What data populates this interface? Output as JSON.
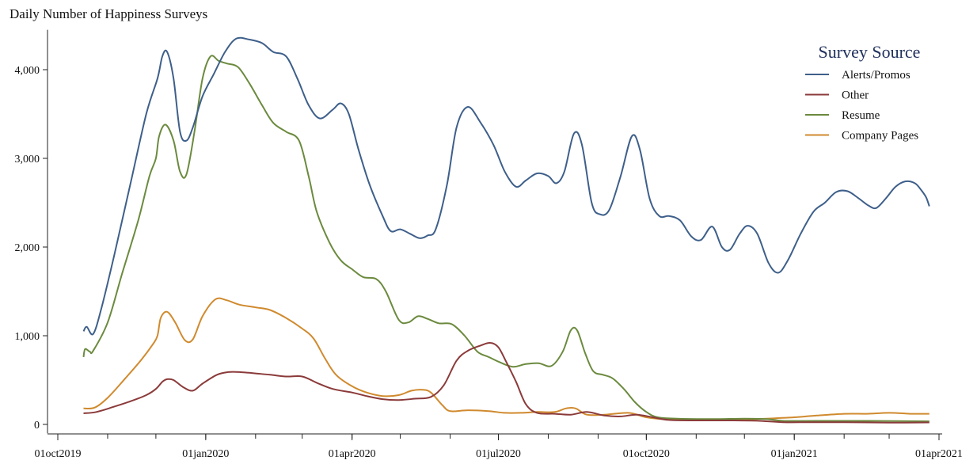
{
  "chart_data": {
    "type": "line",
    "title": "Daily Number of Happiness Surveys",
    "xlabel": "",
    "ylabel": "",
    "x_ticks": [
      "01oct2019",
      "01jan2020",
      "01apr2020",
      "01jul2020",
      "01oct2020",
      "01jan2021",
      "01apr2021"
    ],
    "x_range": [
      "2019-10-01",
      "2021-04-01"
    ],
    "y_ticks": [
      0,
      1000,
      2000,
      3000,
      4000
    ],
    "y_tick_labels": [
      "0",
      "1,000",
      "2,000",
      "3,000",
      "4,000"
    ],
    "ylim": [
      -100,
      4450
    ],
    "grid": false,
    "legend": {
      "title": "Survey Source",
      "position": "top-right"
    },
    "series": [
      {
        "name": "Alerts/Promos",
        "color": "#3e5f8a",
        "points": [
          [
            "2019-10-17",
            1050
          ],
          [
            "2019-10-19",
            1100
          ],
          [
            "2019-10-23",
            1020
          ],
          [
            "2019-10-28",
            1300
          ],
          [
            "2019-11-05",
            1900
          ],
          [
            "2019-11-15",
            2700
          ],
          [
            "2019-11-25",
            3500
          ],
          [
            "2019-12-02",
            3900
          ],
          [
            "2019-12-05",
            4150
          ],
          [
            "2019-12-08",
            4200
          ],
          [
            "2019-12-12",
            3900
          ],
          [
            "2019-12-16",
            3300
          ],
          [
            "2019-12-20",
            3200
          ],
          [
            "2019-12-24",
            3350
          ],
          [
            "2019-12-30",
            3700
          ],
          [
            "2020-01-06",
            3950
          ],
          [
            "2020-01-13",
            4200
          ],
          [
            "2020-01-20",
            4350
          ],
          [
            "2020-01-28",
            4340
          ],
          [
            "2020-02-05",
            4300
          ],
          [
            "2020-02-12",
            4200
          ],
          [
            "2020-02-20",
            4150
          ],
          [
            "2020-02-27",
            3900
          ],
          [
            "2020-03-05",
            3600
          ],
          [
            "2020-03-12",
            3450
          ],
          [
            "2020-03-20",
            3550
          ],
          [
            "2020-03-25",
            3620
          ],
          [
            "2020-03-30",
            3500
          ],
          [
            "2020-04-05",
            3100
          ],
          [
            "2020-04-12",
            2700
          ],
          [
            "2020-04-20",
            2350
          ],
          [
            "2020-04-25",
            2180
          ],
          [
            "2020-05-01",
            2200
          ],
          [
            "2020-05-07",
            2150
          ],
          [
            "2020-05-13",
            2100
          ],
          [
            "2020-05-18",
            2130
          ],
          [
            "2020-05-23",
            2200
          ],
          [
            "2020-05-30",
            2700
          ],
          [
            "2020-06-05",
            3350
          ],
          [
            "2020-06-12",
            3580
          ],
          [
            "2020-06-20",
            3400
          ],
          [
            "2020-06-28",
            3150
          ],
          [
            "2020-07-05",
            2850
          ],
          [
            "2020-07-12",
            2680
          ],
          [
            "2020-07-18",
            2750
          ],
          [
            "2020-07-25",
            2830
          ],
          [
            "2020-08-01",
            2800
          ],
          [
            "2020-08-06",
            2720
          ],
          [
            "2020-08-11",
            2850
          ],
          [
            "2020-08-17",
            3280
          ],
          [
            "2020-08-22",
            3150
          ],
          [
            "2020-08-28",
            2500
          ],
          [
            "2020-09-02",
            2370
          ],
          [
            "2020-09-08",
            2420
          ],
          [
            "2020-09-15",
            2800
          ],
          [
            "2020-09-22",
            3250
          ],
          [
            "2020-09-27",
            3100
          ],
          [
            "2020-10-03",
            2550
          ],
          [
            "2020-10-09",
            2350
          ],
          [
            "2020-10-15",
            2350
          ],
          [
            "2020-10-22",
            2300
          ],
          [
            "2020-10-29",
            2120
          ],
          [
            "2020-11-04",
            2080
          ],
          [
            "2020-11-11",
            2230
          ],
          [
            "2020-11-17",
            2000
          ],
          [
            "2020-11-22",
            1970
          ],
          [
            "2020-11-28",
            2150
          ],
          [
            "2020-12-03",
            2240
          ],
          [
            "2020-12-09",
            2150
          ],
          [
            "2020-12-16",
            1820
          ],
          [
            "2020-12-22",
            1710
          ],
          [
            "2020-12-28",
            1850
          ],
          [
            "2021-01-05",
            2150
          ],
          [
            "2021-01-13",
            2400
          ],
          [
            "2021-01-20",
            2500
          ],
          [
            "2021-01-27",
            2620
          ],
          [
            "2021-02-03",
            2630
          ],
          [
            "2021-02-10",
            2550
          ],
          [
            "2021-02-16",
            2470
          ],
          [
            "2021-02-21",
            2440
          ],
          [
            "2021-02-27",
            2550
          ],
          [
            "2021-03-05",
            2680
          ],
          [
            "2021-03-11",
            2740
          ],
          [
            "2021-03-17",
            2720
          ],
          [
            "2021-03-21",
            2640
          ],
          [
            "2021-03-24",
            2560
          ],
          [
            "2021-03-26",
            2460
          ]
        ]
      },
      {
        "name": "Other",
        "color": "#8b3a3a",
        "points": [
          [
            "2019-10-17",
            125
          ],
          [
            "2019-10-25",
            140
          ],
          [
            "2019-11-05",
            200
          ],
          [
            "2019-11-15",
            260
          ],
          [
            "2019-11-25",
            330
          ],
          [
            "2019-12-01",
            400
          ],
          [
            "2019-12-05",
            480
          ],
          [
            "2019-12-08",
            510
          ],
          [
            "2019-12-12",
            500
          ],
          [
            "2019-12-18",
            420
          ],
          [
            "2019-12-24",
            380
          ],
          [
            "2019-12-30",
            460
          ],
          [
            "2020-01-08",
            560
          ],
          [
            "2020-01-15",
            590
          ],
          [
            "2020-01-22",
            590
          ],
          [
            "2020-02-01",
            575
          ],
          [
            "2020-02-10",
            560
          ],
          [
            "2020-02-20",
            540
          ],
          [
            "2020-03-01",
            540
          ],
          [
            "2020-03-10",
            470
          ],
          [
            "2020-03-20",
            400
          ],
          [
            "2020-04-01",
            360
          ],
          [
            "2020-04-10",
            320
          ],
          [
            "2020-04-20",
            285
          ],
          [
            "2020-04-30",
            275
          ],
          [
            "2020-05-10",
            290
          ],
          [
            "2020-05-20",
            310
          ],
          [
            "2020-05-28",
            440
          ],
          [
            "2020-06-05",
            720
          ],
          [
            "2020-06-12",
            830
          ],
          [
            "2020-06-20",
            890
          ],
          [
            "2020-06-26",
            920
          ],
          [
            "2020-07-01",
            870
          ],
          [
            "2020-07-06",
            700
          ],
          [
            "2020-07-12",
            480
          ],
          [
            "2020-07-18",
            230
          ],
          [
            "2020-07-25",
            130
          ],
          [
            "2020-08-05",
            120
          ],
          [
            "2020-08-15",
            110
          ],
          [
            "2020-08-25",
            140
          ],
          [
            "2020-09-05",
            100
          ],
          [
            "2020-09-15",
            90
          ],
          [
            "2020-09-25",
            110
          ],
          [
            "2020-10-05",
            80
          ],
          [
            "2020-10-15",
            50
          ],
          [
            "2020-11-01",
            45
          ],
          [
            "2020-11-20",
            45
          ],
          [
            "2020-12-10",
            40
          ],
          [
            "2020-12-25",
            25
          ],
          [
            "2021-01-10",
            25
          ],
          [
            "2021-02-01",
            25
          ],
          [
            "2021-03-01",
            20
          ],
          [
            "2021-03-26",
            22
          ]
        ]
      },
      {
        "name": "Resume",
        "color": "#6b8a3e",
        "points": [
          [
            "2019-10-17",
            760
          ],
          [
            "2019-10-18",
            850
          ],
          [
            "2019-10-21",
            820
          ],
          [
            "2019-10-23",
            830
          ],
          [
            "2019-11-01",
            1150
          ],
          [
            "2019-11-10",
            1700
          ],
          [
            "2019-11-20",
            2300
          ],
          [
            "2019-11-27",
            2800
          ],
          [
            "2019-12-01",
            3000
          ],
          [
            "2019-12-03",
            3250
          ],
          [
            "2019-12-07",
            3380
          ],
          [
            "2019-12-12",
            3200
          ],
          [
            "2019-12-16",
            2850
          ],
          [
            "2019-12-20",
            2820
          ],
          [
            "2019-12-25",
            3300
          ],
          [
            "2019-12-30",
            3900
          ],
          [
            "2020-01-04",
            4150
          ],
          [
            "2020-01-09",
            4100
          ],
          [
            "2020-01-14",
            4070
          ],
          [
            "2020-01-21",
            4030
          ],
          [
            "2020-01-28",
            3850
          ],
          [
            "2020-02-05",
            3600
          ],
          [
            "2020-02-12",
            3400
          ],
          [
            "2020-02-20",
            3300
          ],
          [
            "2020-02-28",
            3200
          ],
          [
            "2020-03-05",
            2800
          ],
          [
            "2020-03-10",
            2400
          ],
          [
            "2020-03-18",
            2050
          ],
          [
            "2020-03-25",
            1850
          ],
          [
            "2020-04-01",
            1750
          ],
          [
            "2020-04-08",
            1660
          ],
          [
            "2020-04-16",
            1640
          ],
          [
            "2020-04-22",
            1500
          ],
          [
            "2020-04-30",
            1180
          ],
          [
            "2020-05-06",
            1150
          ],
          [
            "2020-05-12",
            1220
          ],
          [
            "2020-05-18",
            1190
          ],
          [
            "2020-05-25",
            1140
          ],
          [
            "2020-06-02",
            1130
          ],
          [
            "2020-06-10",
            1000
          ],
          [
            "2020-06-18",
            820
          ],
          [
            "2020-06-25",
            760
          ],
          [
            "2020-07-02",
            700
          ],
          [
            "2020-07-10",
            650
          ],
          [
            "2020-07-18",
            680
          ],
          [
            "2020-07-26",
            690
          ],
          [
            "2020-08-03",
            660
          ],
          [
            "2020-08-10",
            820
          ],
          [
            "2020-08-15",
            1060
          ],
          [
            "2020-08-19",
            1060
          ],
          [
            "2020-08-24",
            800
          ],
          [
            "2020-08-29",
            600
          ],
          [
            "2020-09-04",
            560
          ],
          [
            "2020-09-10",
            520
          ],
          [
            "2020-09-17",
            400
          ],
          [
            "2020-09-24",
            250
          ],
          [
            "2020-10-01",
            140
          ],
          [
            "2020-10-08",
            80
          ],
          [
            "2020-10-20",
            65
          ],
          [
            "2020-11-10",
            60
          ],
          [
            "2020-12-01",
            65
          ],
          [
            "2020-12-15",
            60
          ],
          [
            "2020-12-25",
            40
          ],
          [
            "2021-01-15",
            40
          ],
          [
            "2021-02-15",
            40
          ],
          [
            "2021-03-26",
            35
          ]
        ]
      },
      {
        "name": "Company Pages",
        "color": "#d08a2e",
        "points": [
          [
            "2019-10-17",
            180
          ],
          [
            "2019-10-24",
            190
          ],
          [
            "2019-11-01",
            300
          ],
          [
            "2019-11-12",
            520
          ],
          [
            "2019-11-22",
            730
          ],
          [
            "2019-11-29",
            900
          ],
          [
            "2019-12-02",
            1000
          ],
          [
            "2019-12-04",
            1200
          ],
          [
            "2019-12-08",
            1270
          ],
          [
            "2019-12-13",
            1150
          ],
          [
            "2019-12-19",
            950
          ],
          [
            "2019-12-24",
            960
          ],
          [
            "2019-12-30",
            1220
          ],
          [
            "2020-01-07",
            1410
          ],
          [
            "2020-01-14",
            1400
          ],
          [
            "2020-01-22",
            1350
          ],
          [
            "2020-02-01",
            1320
          ],
          [
            "2020-02-10",
            1290
          ],
          [
            "2020-02-20",
            1200
          ],
          [
            "2020-03-01",
            1080
          ],
          [
            "2020-03-08",
            970
          ],
          [
            "2020-03-15",
            750
          ],
          [
            "2020-03-22",
            560
          ],
          [
            "2020-04-01",
            430
          ],
          [
            "2020-04-10",
            360
          ],
          [
            "2020-04-20",
            320
          ],
          [
            "2020-04-30",
            330
          ],
          [
            "2020-05-08",
            380
          ],
          [
            "2020-05-15",
            390
          ],
          [
            "2020-05-20",
            360
          ],
          [
            "2020-05-27",
            220
          ],
          [
            "2020-06-01",
            150
          ],
          [
            "2020-06-12",
            160
          ],
          [
            "2020-06-25",
            150
          ],
          [
            "2020-07-05",
            130
          ],
          [
            "2020-07-15",
            130
          ],
          [
            "2020-07-25",
            140
          ],
          [
            "2020-08-05",
            140
          ],
          [
            "2020-08-12",
            180
          ],
          [
            "2020-08-18",
            180
          ],
          [
            "2020-08-25",
            110
          ],
          [
            "2020-09-05",
            110
          ],
          [
            "2020-09-20",
            130
          ],
          [
            "2020-10-01",
            80
          ],
          [
            "2020-10-15",
            55
          ],
          [
            "2020-11-01",
            50
          ],
          [
            "2020-12-01",
            55
          ],
          [
            "2020-12-20",
            70
          ],
          [
            "2021-01-01",
            80
          ],
          [
            "2021-01-15",
            100
          ],
          [
            "2021-02-01",
            120
          ],
          [
            "2021-02-15",
            120
          ],
          [
            "2021-03-01",
            130
          ],
          [
            "2021-03-15",
            120
          ],
          [
            "2021-03-26",
            120
          ]
        ]
      }
    ]
  }
}
